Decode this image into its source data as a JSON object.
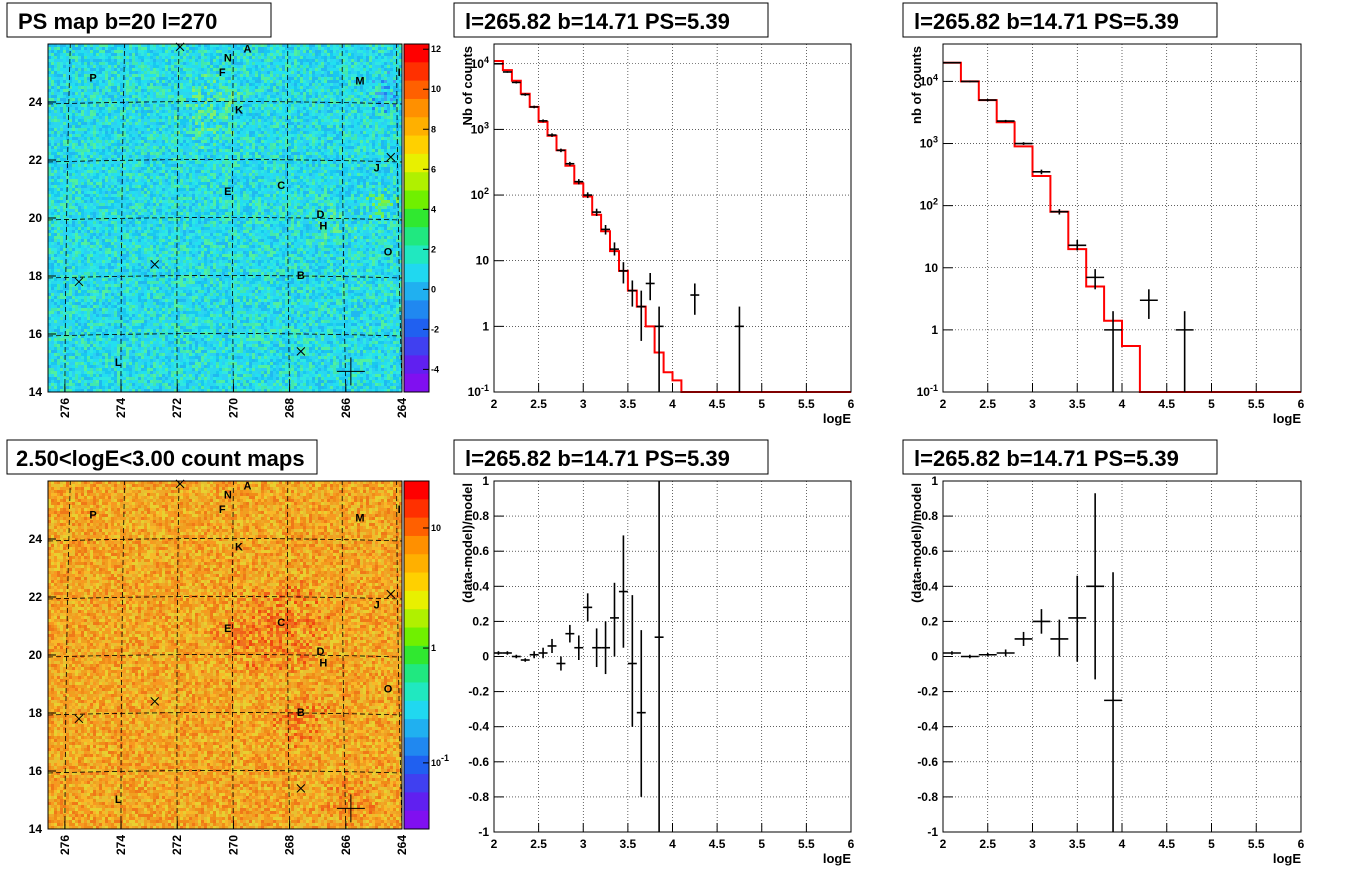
{
  "colors": {
    "model": "#ff0000",
    "data": "#000000",
    "grid": "#000000",
    "map_base_top": "#22ddee",
    "map_base_bottom": "#f0a020"
  },
  "panels": {
    "map_top": {
      "title": "PS map b=20 l=270",
      "x_ticks": [
        "276",
        "274",
        "272",
        "270",
        "268",
        "266",
        "264"
      ],
      "y_ticks": [
        "14",
        "16",
        "18",
        "20",
        "22",
        "24"
      ],
      "colorbar_ticks": [
        "-4",
        "-2",
        "0",
        "2",
        "4",
        "6",
        "8",
        "10",
        "12"
      ]
    },
    "map_bottom": {
      "title": "2.50<logE<3.00 count maps",
      "x_ticks": [
        "276",
        "274",
        "272",
        "270",
        "268",
        "266",
        "264"
      ],
      "y_ticks": [
        "14",
        "16",
        "18",
        "20",
        "22",
        "24"
      ],
      "colorbar_ticks": [
        "10",
        "1",
        "10-1"
      ]
    }
  },
  "sources": [
    {
      "label": "A",
      "l": 269.5,
      "b": 25.7
    },
    {
      "label": "N",
      "l": 270.2,
      "b": 25.4
    },
    {
      "label": "F",
      "l": 270.4,
      "b": 24.9
    },
    {
      "label": "P",
      "l": 275.0,
      "b": 24.7
    },
    {
      "label": "M",
      "l": 265.5,
      "b": 24.6
    },
    {
      "label": "I",
      "l": 264.1,
      "b": 24.9
    },
    {
      "label": "K",
      "l": 269.8,
      "b": 23.6
    },
    {
      "label": "J",
      "l": 264.9,
      "b": 21.6
    },
    {
      "label": "C",
      "l": 268.3,
      "b": 21.0
    },
    {
      "label": "E",
      "l": 270.2,
      "b": 20.8
    },
    {
      "label": "D",
      "l": 266.9,
      "b": 20.0
    },
    {
      "label": "H",
      "l": 266.8,
      "b": 19.6
    },
    {
      "label": "O",
      "l": 264.5,
      "b": 18.7
    },
    {
      "label": "B",
      "l": 267.6,
      "b": 17.9
    },
    {
      "label": "L",
      "l": 274.1,
      "b": 14.9
    }
  ],
  "chart_data": [
    {
      "type": "line",
      "title": "l=265.82 b=14.71 PS=5.39",
      "xlabel": "logE",
      "ylabel": "Nb of counts",
      "xlim": [
        2,
        6
      ],
      "ylim": [
        0.1,
        20000
      ],
      "yscale": "log",
      "grid": true,
      "x_ticks": [
        "2",
        "2.5",
        "3",
        "3.5",
        "4",
        "4.5",
        "5",
        "5.5",
        "6"
      ],
      "y_ticks": [
        "10-1",
        "1",
        "10",
        "102",
        "103",
        "104"
      ],
      "model_step": {
        "edges": [
          2.0,
          2.1,
          2.2,
          2.3,
          2.4,
          2.5,
          2.6,
          2.7,
          2.8,
          2.9,
          3.0,
          3.1,
          3.2,
          3.3,
          3.4,
          3.5,
          3.6,
          3.7,
          3.8,
          3.9,
          4.0,
          4.1,
          4.2,
          6.0
        ],
        "values": [
          11000,
          8000,
          5500,
          3500,
          2200,
          1300,
          800,
          480,
          280,
          150,
          95,
          50,
          28,
          14,
          7,
          3.5,
          2,
          1,
          0.4,
          0.2,
          0.15,
          0.1,
          0.1
        ]
      },
      "points": [
        {
          "x": 2.05,
          "y": 10000,
          "ylo": 9800,
          "yhi": 10200
        },
        {
          "x": 2.15,
          "y": 7500,
          "ylo": 7300,
          "yhi": 7700
        },
        {
          "x": 2.25,
          "y": 5200,
          "ylo": 5000,
          "yhi": 5400
        },
        {
          "x": 2.35,
          "y": 3400,
          "ylo": 3250,
          "yhi": 3550
        },
        {
          "x": 2.45,
          "y": 2200,
          "ylo": 2100,
          "yhi": 2300
        },
        {
          "x": 2.55,
          "y": 1350,
          "ylo": 1280,
          "yhi": 1420
        },
        {
          "x": 2.65,
          "y": 820,
          "ylo": 770,
          "yhi": 870
        },
        {
          "x": 2.75,
          "y": 480,
          "ylo": 450,
          "yhi": 510
        },
        {
          "x": 2.85,
          "y": 300,
          "ylo": 280,
          "yhi": 320
        },
        {
          "x": 2.95,
          "y": 160,
          "ylo": 145,
          "yhi": 175
        },
        {
          "x": 3.05,
          "y": 100,
          "ylo": 90,
          "yhi": 110
        },
        {
          "x": 3.15,
          "y": 55,
          "ylo": 48,
          "yhi": 62
        },
        {
          "x": 3.25,
          "y": 30,
          "ylo": 25,
          "yhi": 35
        },
        {
          "x": 3.35,
          "y": 15,
          "ylo": 12,
          "yhi": 19
        },
        {
          "x": 3.45,
          "y": 7,
          "ylo": 4.5,
          "yhi": 9.5
        },
        {
          "x": 3.55,
          "y": 3.5,
          "ylo": 2,
          "yhi": 5
        },
        {
          "x": 3.65,
          "y": 2,
          "ylo": 0.6,
          "yhi": 3.5
        },
        {
          "x": 3.75,
          "y": 4.5,
          "ylo": 2.5,
          "yhi": 6.5
        },
        {
          "x": 3.85,
          "y": 1,
          "ylo": 0.1,
          "yhi": 2
        },
        {
          "x": 4.25,
          "y": 3,
          "ylo": 1.5,
          "yhi": 4.5
        },
        {
          "x": 4.75,
          "y": 1,
          "ylo": 0.1,
          "yhi": 2
        }
      ]
    },
    {
      "type": "line",
      "title": "l=265.82 b=14.71 PS=5.39",
      "xlabel": "logE",
      "ylabel": "nb of counts",
      "xlim": [
        2,
        6
      ],
      "ylim": [
        0.1,
        40000
      ],
      "yscale": "log",
      "grid": true,
      "x_ticks": [
        "2",
        "2.5",
        "3",
        "3.5",
        "4",
        "4.5",
        "5",
        "5.5",
        "6"
      ],
      "y_ticks": [
        "10-1",
        "1",
        "10",
        "102",
        "103",
        "104"
      ],
      "model_step": {
        "edges": [
          2.0,
          2.2,
          2.4,
          2.6,
          2.8,
          3.0,
          3.2,
          3.4,
          3.6,
          3.8,
          4.0,
          4.2,
          6.0
        ],
        "values": [
          20000,
          10000,
          5000,
          2200,
          900,
          300,
          80,
          20,
          5,
          1.4,
          0.55,
          0.1
        ]
      },
      "points": [
        {
          "x": 2.1,
          "y": 20000,
          "ylo": 19600,
          "yhi": 20400
        },
        {
          "x": 2.3,
          "y": 10000,
          "ylo": 9700,
          "yhi": 10300
        },
        {
          "x": 2.5,
          "y": 5000,
          "ylo": 4800,
          "yhi": 5200
        },
        {
          "x": 2.7,
          "y": 2300,
          "ylo": 2200,
          "yhi": 2400
        },
        {
          "x": 2.9,
          "y": 1000,
          "ylo": 950,
          "yhi": 1050
        },
        {
          "x": 3.1,
          "y": 350,
          "ylo": 320,
          "yhi": 380
        },
        {
          "x": 3.3,
          "y": 80,
          "ylo": 72,
          "yhi": 88
        },
        {
          "x": 3.5,
          "y": 23,
          "ylo": 19,
          "yhi": 28
        },
        {
          "x": 3.7,
          "y": 7,
          "ylo": 4.5,
          "yhi": 9.5
        },
        {
          "x": 3.9,
          "y": 1,
          "ylo": 0.1,
          "yhi": 2
        },
        {
          "x": 4.3,
          "y": 3,
          "ylo": 1.5,
          "yhi": 4.5
        },
        {
          "x": 4.7,
          "y": 1,
          "ylo": 0.1,
          "yhi": 2
        }
      ]
    },
    {
      "type": "scatter",
      "title": "l=265.82 b=14.71 PS=5.39",
      "xlabel": "logE",
      "ylabel": "(data-model)/model",
      "xlim": [
        2,
        6
      ],
      "ylim": [
        -1,
        1
      ],
      "grid": true,
      "x_ticks": [
        "2",
        "2.5",
        "3",
        "3.5",
        "4",
        "4.5",
        "5",
        "5.5",
        "6"
      ],
      "y_ticks": [
        "-1",
        "-0.8",
        "-0.6",
        "-0.4",
        "-0.2",
        "0",
        "0.2",
        "0.4",
        "0.6",
        "0.8",
        "1"
      ],
      "points": [
        {
          "x": 2.05,
          "y": 0.02,
          "ylo": 0.01,
          "yhi": 0.03,
          "xhw": 0.05
        },
        {
          "x": 2.15,
          "y": 0.02,
          "ylo": 0.01,
          "yhi": 0.03,
          "xhw": 0.05
        },
        {
          "x": 2.25,
          "y": 0.0,
          "ylo": -0.01,
          "yhi": 0.01,
          "xhw": 0.05
        },
        {
          "x": 2.35,
          "y": -0.02,
          "ylo": -0.03,
          "yhi": -0.01,
          "xhw": 0.05
        },
        {
          "x": 2.45,
          "y": 0.01,
          "ylo": -0.01,
          "yhi": 0.03,
          "xhw": 0.05
        },
        {
          "x": 2.55,
          "y": 0.02,
          "ylo": -0.01,
          "yhi": 0.05,
          "xhw": 0.05
        },
        {
          "x": 2.65,
          "y": 0.06,
          "ylo": 0.02,
          "yhi": 0.1,
          "xhw": 0.05
        },
        {
          "x": 2.75,
          "y": -0.04,
          "ylo": -0.08,
          "yhi": 0.0,
          "xhw": 0.05
        },
        {
          "x": 2.85,
          "y": 0.13,
          "ylo": 0.08,
          "yhi": 0.18,
          "xhw": 0.05
        },
        {
          "x": 2.95,
          "y": 0.05,
          "ylo": -0.02,
          "yhi": 0.12,
          "xhw": 0.05
        },
        {
          "x": 3.05,
          "y": 0.28,
          "ylo": 0.2,
          "yhi": 0.36,
          "xhw": 0.05
        },
        {
          "x": 3.15,
          "y": 0.05,
          "ylo": -0.06,
          "yhi": 0.16,
          "xhw": 0.05
        },
        {
          "x": 3.25,
          "y": 0.05,
          "ylo": -0.1,
          "yhi": 0.2,
          "xhw": 0.05
        },
        {
          "x": 3.35,
          "y": 0.22,
          "ylo": 0.0,
          "yhi": 0.42,
          "xhw": 0.05
        },
        {
          "x": 3.45,
          "y": 0.37,
          "ylo": 0.05,
          "yhi": 0.69,
          "xhw": 0.05
        },
        {
          "x": 3.55,
          "y": -0.04,
          "ylo": -0.4,
          "yhi": 0.35,
          "xhw": 0.05
        },
        {
          "x": 3.65,
          "y": -0.32,
          "ylo": -0.8,
          "yhi": 0.15,
          "xhw": 0.05
        },
        {
          "x": 3.85,
          "y": 0.11,
          "ylo": -1.0,
          "yhi": 1.0,
          "xhw": 0.05
        }
      ]
    },
    {
      "type": "scatter",
      "title": "l=265.82 b=14.71 PS=5.39",
      "xlabel": "logE",
      "ylabel": "(data-model)/model",
      "xlim": [
        2,
        6
      ],
      "ylim": [
        -1,
        1
      ],
      "grid": true,
      "x_ticks": [
        "2",
        "2.5",
        "3",
        "3.5",
        "4",
        "4.5",
        "5",
        "5.5",
        "6"
      ],
      "y_ticks": [
        "-1",
        "-0.8",
        "-0.6",
        "-0.4",
        "-0.2",
        "0",
        "0.2",
        "0.4",
        "0.6",
        "0.8",
        "1"
      ],
      "points": [
        {
          "x": 2.1,
          "y": 0.02,
          "ylo": 0.01,
          "yhi": 0.03,
          "xhw": 0.1
        },
        {
          "x": 2.3,
          "y": 0.0,
          "ylo": -0.01,
          "yhi": 0.01,
          "xhw": 0.1
        },
        {
          "x": 2.5,
          "y": 0.01,
          "ylo": 0.0,
          "yhi": 0.02,
          "xhw": 0.1
        },
        {
          "x": 2.7,
          "y": 0.02,
          "ylo": 0.0,
          "yhi": 0.04,
          "xhw": 0.1
        },
        {
          "x": 2.9,
          "y": 0.1,
          "ylo": 0.06,
          "yhi": 0.14,
          "xhw": 0.1
        },
        {
          "x": 3.1,
          "y": 0.2,
          "ylo": 0.13,
          "yhi": 0.27,
          "xhw": 0.1
        },
        {
          "x": 3.3,
          "y": 0.1,
          "ylo": 0.0,
          "yhi": 0.21,
          "xhw": 0.1
        },
        {
          "x": 3.5,
          "y": 0.22,
          "ylo": -0.03,
          "yhi": 0.46,
          "xhw": 0.1
        },
        {
          "x": 3.7,
          "y": 0.4,
          "ylo": -0.13,
          "yhi": 0.93,
          "xhw": 0.1
        },
        {
          "x": 3.9,
          "y": -0.25,
          "ylo": -1.0,
          "yhi": 0.48,
          "xhw": 0.1
        }
      ]
    }
  ]
}
